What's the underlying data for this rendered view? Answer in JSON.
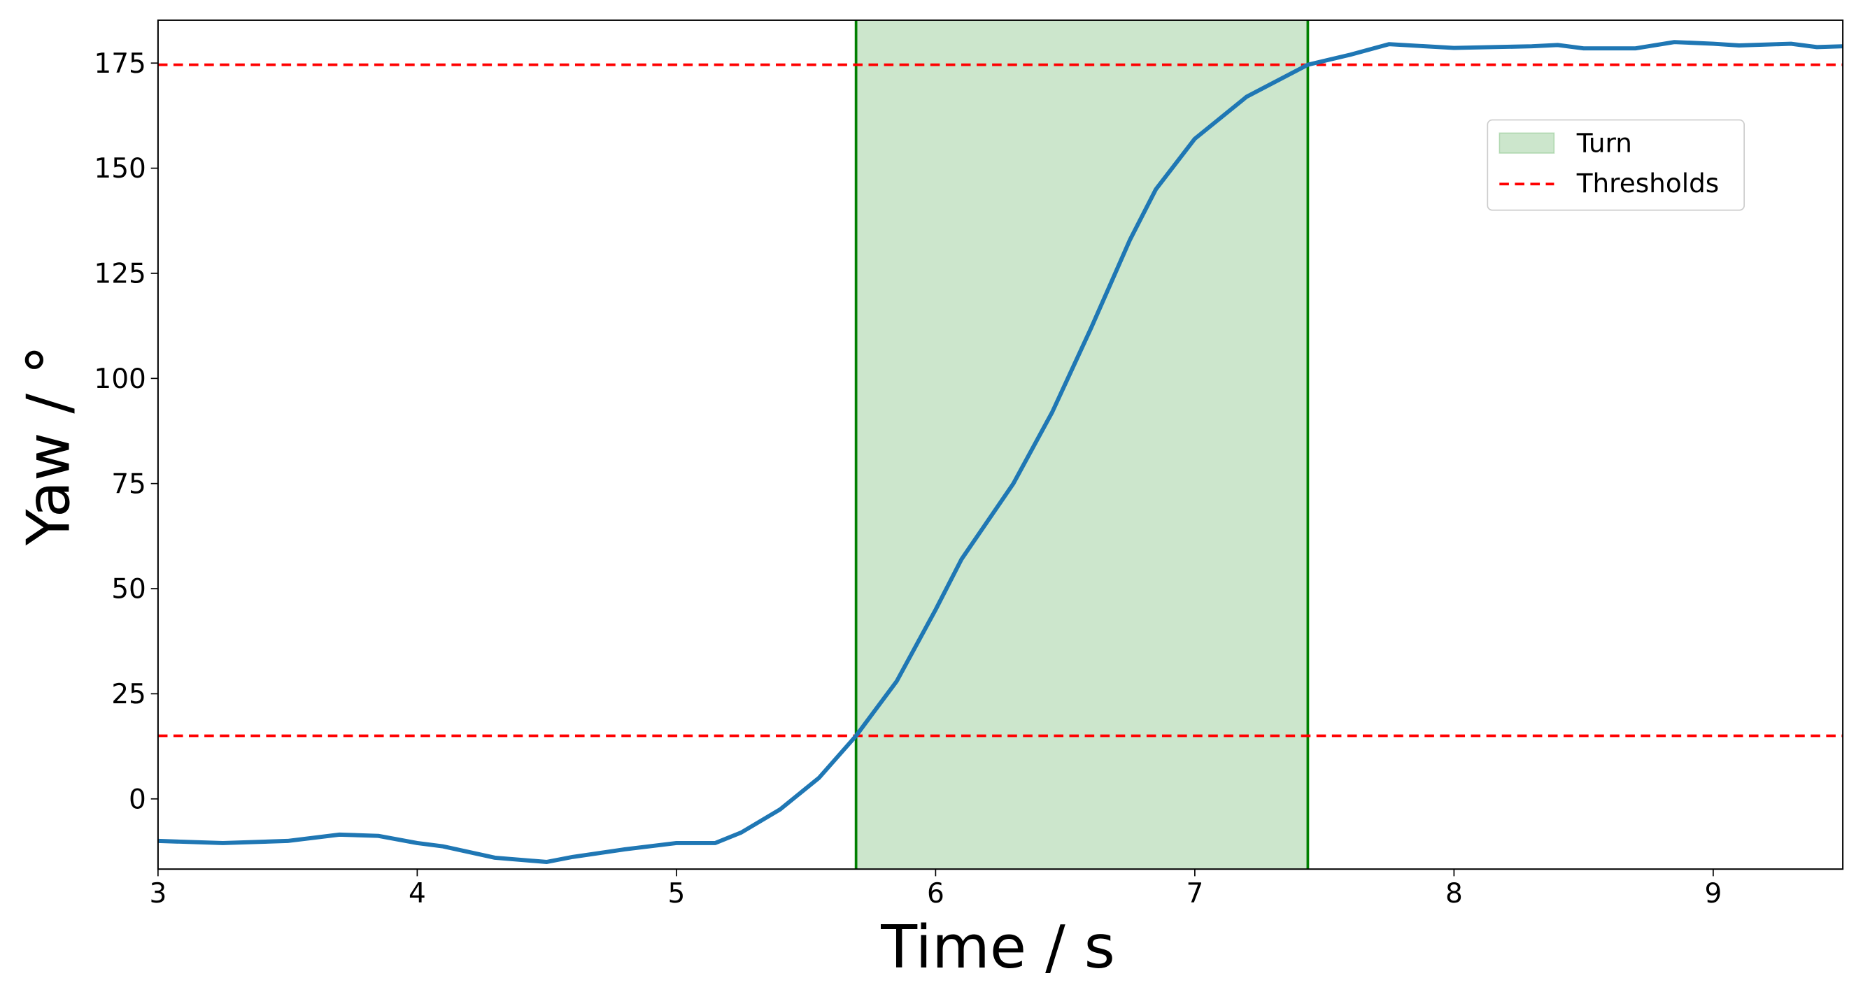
{
  "chart_data": {
    "type": "line",
    "xlabel": "Time / s",
    "ylabel": "Yaw / °",
    "x": [
      3,
      3.25,
      3.5,
      3.7,
      3.85,
      4.0,
      4.1,
      4.3,
      4.5,
      4.6,
      4.8,
      5.0,
      5.15,
      5.25,
      5.4,
      5.55,
      5.693,
      5.85,
      6.0,
      6.1,
      6.3,
      6.45,
      6.6,
      6.75,
      6.85,
      7.0,
      7.2,
      7.436,
      7.6,
      7.75,
      8.0,
      8.3,
      8.4,
      8.5,
      8.7,
      8.85,
      9.0,
      9.1,
      9.3,
      9.4,
      9.5
    ],
    "series": [
      {
        "color": "#1f77b4",
        "values": [
          -10,
          -10.5,
          -10,
          -8.5,
          -8.8,
          -10.5,
          -11.3,
          -14,
          -15,
          -13.8,
          -12,
          -10.5,
          -10.5,
          -8,
          -2.5,
          5,
          15,
          28,
          45,
          57,
          75,
          92,
          112,
          133,
          145,
          157,
          167,
          174.6,
          177,
          179.5,
          178.6,
          179,
          179.3,
          178.5,
          178.5,
          180,
          179.6,
          179.2,
          179.6,
          178.8,
          179
        ]
      }
    ],
    "thresholds": {
      "name": "Thresholds",
      "color": "#ff0000",
      "values": [
        15,
        174.6
      ]
    },
    "span": {
      "name": "Turn",
      "color": "#008000",
      "x": [
        5.693,
        7.436
      ]
    },
    "xlim": [
      3,
      9.5
    ],
    "xticks": [
      3,
      4,
      5,
      6,
      7,
      8,
      9
    ],
    "ylim": [
      -16.7,
      185.2
    ],
    "yticks": [
      0,
      25,
      50,
      75,
      100,
      125,
      150,
      175
    ],
    "legend": "upper right"
  }
}
